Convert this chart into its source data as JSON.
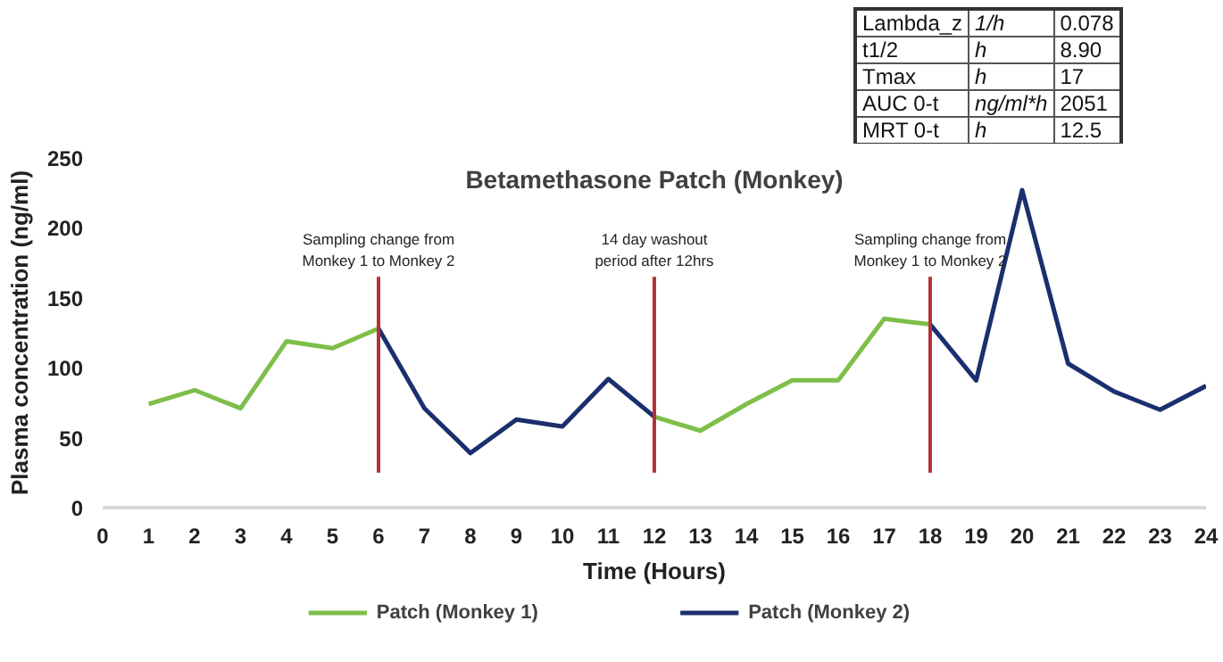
{
  "chart_data": {
    "type": "line",
    "title": "Betamethasone Patch (Monkey)",
    "xlabel": "Time (Hours)",
    "ylabel": "Plasma concentration (ng/ml)",
    "x": [
      1,
      2,
      3,
      4,
      5,
      6,
      7,
      8,
      9,
      10,
      11,
      12,
      13,
      14,
      15,
      16,
      17,
      18,
      19,
      20,
      21,
      22,
      23,
      24
    ],
    "series": [
      {
        "name": "Patch (Monkey 1)",
        "color": "#7dbf4a",
        "values": [
          74,
          84,
          71,
          119,
          114,
          128,
          null,
          null,
          null,
          null,
          null,
          65,
          55,
          74,
          91,
          91,
          135,
          131,
          null,
          null,
          null,
          null,
          null,
          null
        ]
      },
      {
        "name": "Patch (Monkey 2)",
        "color": "#1b2f6e",
        "values": [
          null,
          null,
          null,
          null,
          null,
          128,
          71,
          39,
          63,
          58,
          92,
          65,
          null,
          null,
          null,
          null,
          null,
          131,
          91,
          227,
          103,
          83,
          70,
          87
        ]
      }
    ],
    "xlim": [
      0,
      24
    ],
    "xticks": [
      0,
      1,
      2,
      3,
      4,
      5,
      6,
      7,
      8,
      9,
      10,
      11,
      12,
      13,
      14,
      15,
      16,
      17,
      18,
      19,
      20,
      21,
      22,
      23,
      24
    ],
    "ylim": [
      0,
      250
    ],
    "yticks": [
      0,
      50,
      100,
      150,
      200,
      250
    ],
    "grid": false,
    "legend": "bottom",
    "marker": "none",
    "line_style": "solid",
    "ref_lines": [
      {
        "axis": "x",
        "value": 6,
        "color": "#b5313a",
        "label": "Sampling change from\nMonkey 1 to Monkey 2"
      },
      {
        "axis": "x",
        "value": 12,
        "color": "#b5313a",
        "label": "14 day washout\nperiod after 12hrs"
      },
      {
        "axis": "x",
        "value": 18,
        "color": "#b5313a",
        "label": "Sampling change from\nMonkey 1 to Monkey 2"
      }
    ],
    "annotations": [
      "Lambda_z",
      "1/h",
      "0.078",
      "t1/2",
      "h",
      "8.90",
      "Tmax",
      "h",
      "17",
      "AUC 0-t",
      "ng/ml*h",
      "2051",
      "MRT 0-t",
      "h",
      "12.5"
    ]
  }
}
